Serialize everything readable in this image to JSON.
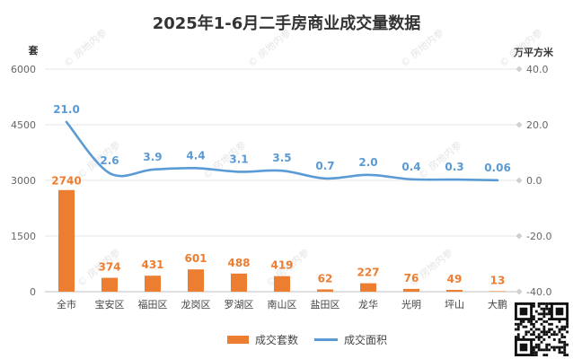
{
  "chart_data": {
    "type": "bar+line",
    "title": "2025年1-6月二手房商业成交量数据",
    "y_left_unit": "套",
    "y_right_unit": "万平方米",
    "categories": [
      "全市",
      "宝安区",
      "福田区",
      "龙岗区",
      "罗湖区",
      "南山区",
      "盐田区",
      "龙华",
      "光明",
      "坪山",
      "大鹏"
    ],
    "series": [
      {
        "name": "成交套数",
        "type": "bar",
        "axis": "left",
        "color": "#ED7D31",
        "values": [
          2740,
          374,
          431,
          601,
          488,
          419,
          62,
          227,
          76,
          49,
          13
        ],
        "labels": [
          "2740",
          "374",
          "431",
          "601",
          "488",
          "419",
          "62",
          "227",
          "76",
          "49",
          "13"
        ]
      },
      {
        "name": "成交面积",
        "type": "line",
        "axis": "right",
        "color": "#5B9BD5",
        "values": [
          21.0,
          2.6,
          3.9,
          4.4,
          3.1,
          3.5,
          0.7,
          2.0,
          0.4,
          0.3,
          0.06
        ],
        "labels": [
          "21.0",
          "2.6",
          "3.9",
          "4.4",
          "3.1",
          "3.5",
          "0.7",
          "2.0",
          "0.4",
          "0.3",
          "0.06"
        ]
      }
    ],
    "y_left": {
      "min": 0,
      "max": 6000,
      "ticks": [
        0,
        1500,
        3000,
        4500,
        6000
      ],
      "tick_labels": [
        "0",
        "1500",
        "3000",
        "4500",
        "6000"
      ]
    },
    "y_right": {
      "min": -40,
      "max": 40,
      "ticks": [
        -40,
        -20,
        0,
        20,
        40
      ],
      "tick_labels": [
        "-40.0",
        "-20.0",
        "0.0",
        "20.0",
        "40.0"
      ]
    },
    "grid": true,
    "legend_position": "bottom",
    "watermark": "房地内参"
  }
}
